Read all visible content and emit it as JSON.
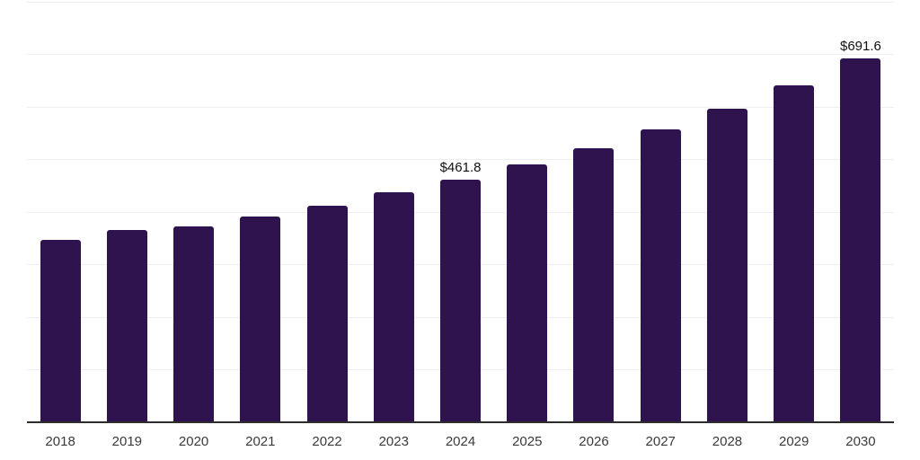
{
  "chart_data": {
    "type": "bar",
    "categories": [
      "2018",
      "2019",
      "2020",
      "2021",
      "2022",
      "2023",
      "2024",
      "2025",
      "2026",
      "2027",
      "2028",
      "2029",
      "2030"
    ],
    "values": [
      346.8,
      365.3,
      373.5,
      391.8,
      412.4,
      437.6,
      461.8,
      490.8,
      521.7,
      556.8,
      596.1,
      640.4,
      691.6
    ],
    "point_labels": [
      "",
      "",
      "",
      "",
      "",
      "",
      "$461.8",
      "",
      "",
      "",
      "",
      "",
      "$691.6"
    ],
    "title": "",
    "xlabel": "",
    "ylabel": "",
    "ylim": [
      0,
      800
    ],
    "grid_step": 100,
    "grid": true,
    "legend": false,
    "colors": {
      "bar": "#2f134e",
      "grid": "#eeeeee",
      "axis": "#2d2d2d",
      "value_label": "#111111",
      "tick_label": "#3a3a3a",
      "background": "#ffffff"
    }
  }
}
